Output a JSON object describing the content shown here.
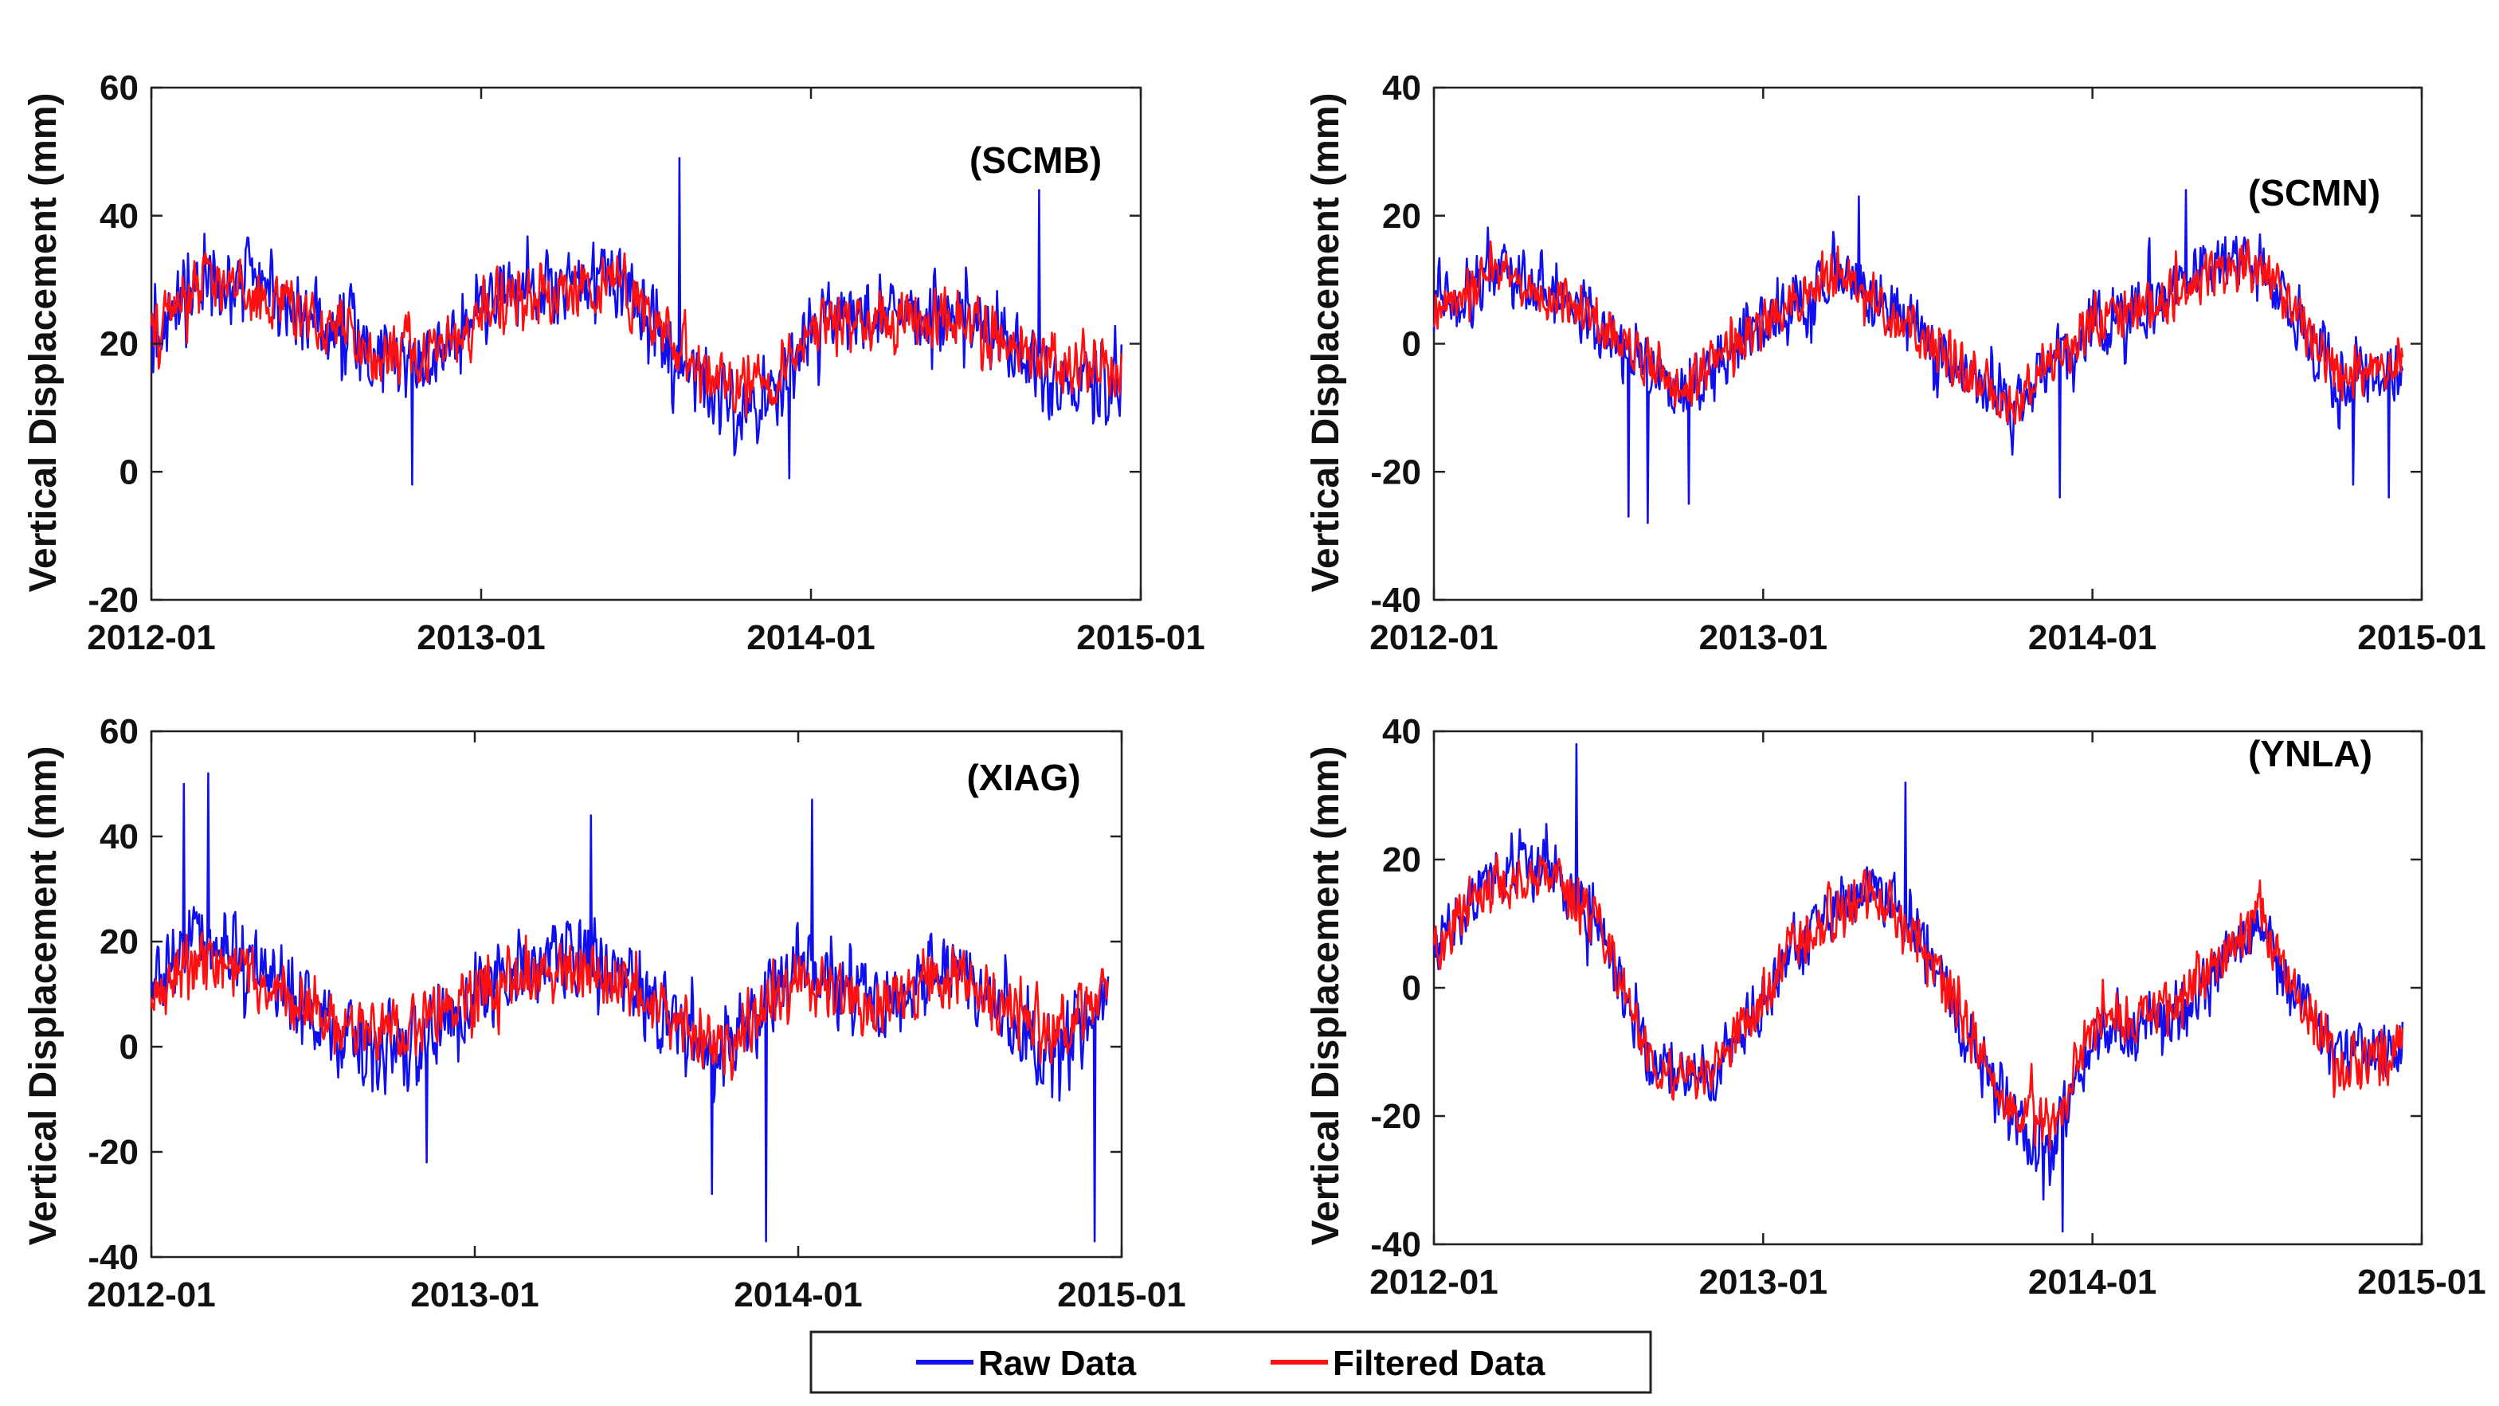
{
  "colors": {
    "raw": "#1010ee",
    "filtered": "#ff1010",
    "axis": "#222222",
    "background": "#ffffff"
  },
  "legend": {
    "entries": [
      {
        "label": "Raw Data",
        "color": "#1010ee"
      },
      {
        "label": "Filtered Data",
        "color": "#ff1010"
      }
    ]
  },
  "chart_data": [
    {
      "type": "line",
      "title": "(SCMB)",
      "xlabel": "",
      "ylabel": "Vertical Displacement (mm)",
      "ylim": [
        -20,
        60
      ],
      "yticks": [
        -20,
        0,
        20,
        40,
        60
      ],
      "xlim": [
        "2012-01",
        "2015-01"
      ],
      "xticks": [
        "2012-01",
        "2013-01",
        "2014-01",
        "2015-01"
      ],
      "x_range_months": [
        0,
        36
      ],
      "data_end_month": 35.3,
      "series": [
        {
          "name": "Raw Data",
          "seasonal_months": [
            0,
            2,
            5,
            8.5,
            10,
            13,
            17,
            20,
            22.5,
            24,
            27,
            30,
            32.5,
            35.3
          ],
          "seasonal_values": [
            22,
            31,
            27,
            17,
            16,
            28,
            30,
            13,
            10,
            22,
            25,
            24,
            15,
            13
          ],
          "noise_amplitude": 7,
          "spikes": [
            {
              "month": 19.2,
              "value": 49
            },
            {
              "month": 32.3,
              "value": 44
            },
            {
              "month": 9.5,
              "value": -2
            },
            {
              "month": 23.2,
              "value": -1
            }
          ]
        },
        {
          "name": "Filtered Data",
          "seasonal_months": [
            0,
            2,
            5,
            8.5,
            10,
            13,
            17,
            20,
            22.5,
            24,
            27,
            30,
            32.5,
            35.3
          ],
          "seasonal_values": [
            22,
            30,
            26,
            18,
            18,
            27,
            29,
            16,
            13,
            22,
            24,
            24,
            17,
            15
          ],
          "noise_amplitude": 5.5
        }
      ]
    },
    {
      "type": "line",
      "title": "(SCMN)",
      "xlabel": "",
      "ylabel": "Vertical Displacement (mm)",
      "ylim": [
        -40,
        40
      ],
      "yticks": [
        -40,
        -20,
        0,
        20,
        40
      ],
      "xlim": [
        "2012-01",
        "2015-01"
      ],
      "xticks": [
        "2012-01",
        "2013-01",
        "2014-01",
        "2015-01"
      ],
      "x_range_months": [
        0,
        36
      ],
      "data_end_month": 35.3,
      "series": [
        {
          "name": "Raw Data",
          "seasonal_months": [
            0,
            2,
            4.5,
            7,
            9,
            12,
            15,
            18,
            21,
            24,
            27,
            30,
            33,
            35.3
          ],
          "seasonal_values": [
            5,
            12,
            8,
            0,
            -8,
            3,
            12,
            0,
            -10,
            3,
            8,
            14,
            -6,
            -4
          ],
          "noise_amplitude": 6,
          "spikes": [
            {
              "month": 7.1,
              "value": -27
            },
            {
              "month": 7.8,
              "value": -28
            },
            {
              "month": 9.3,
              "value": -25
            },
            {
              "month": 15.5,
              "value": 23
            },
            {
              "month": 27.4,
              "value": 24
            },
            {
              "month": 22.8,
              "value": -24
            },
            {
              "month": 33.5,
              "value": -22
            },
            {
              "month": 34.8,
              "value": -24
            }
          ]
        },
        {
          "name": "Filtered Data",
          "seasonal_months": [
            0,
            2,
            4.5,
            7,
            9,
            12,
            15,
            18,
            21,
            24,
            27,
            30,
            33,
            35.3
          ],
          "seasonal_values": [
            5,
            11,
            7,
            0,
            -7,
            3,
            11,
            0,
            -9,
            3,
            8,
            13,
            -5,
            -3
          ],
          "noise_amplitude": 4.5
        }
      ]
    },
    {
      "type": "line",
      "title": "(XIAG)",
      "xlabel": "",
      "ylabel": "Vertical Displacement (mm)",
      "ylim": [
        -40,
        60
      ],
      "yticks": [
        -40,
        -20,
        0,
        20,
        40,
        60
      ],
      "xlim": [
        "2012-01",
        "2015-01"
      ],
      "xticks": [
        "2012-01",
        "2013-01",
        "2014-01",
        "2015-01"
      ],
      "x_range_months": [
        0,
        36
      ],
      "data_end_month": 35.5,
      "series": [
        {
          "name": "Raw Data",
          "seasonal_months": [
            0,
            2,
            4,
            7,
            9,
            12,
            15,
            18,
            21,
            24,
            27,
            30,
            33,
            35.5
          ],
          "seasonal_values": [
            12,
            20,
            15,
            2,
            -2,
            10,
            18,
            10,
            -3,
            15,
            8,
            15,
            -2,
            10
          ],
          "noise_amplitude": 9,
          "spikes": [
            {
              "month": 2.1,
              "value": 52
            },
            {
              "month": 1.2,
              "value": 50
            },
            {
              "month": 16.3,
              "value": 44
            },
            {
              "month": 24.5,
              "value": 47
            },
            {
              "month": 22.8,
              "value": -37
            },
            {
              "month": 35.0,
              "value": -37
            },
            {
              "month": 20.8,
              "value": -28
            },
            {
              "month": 10.2,
              "value": -22
            }
          ]
        },
        {
          "name": "Filtered Data",
          "seasonal_months": [
            0,
            2,
            4,
            7,
            9,
            12,
            15,
            18,
            21,
            24,
            27,
            30,
            33,
            35.5
          ],
          "seasonal_values": [
            10,
            17,
            13,
            3,
            2,
            10,
            16,
            10,
            0,
            12,
            8,
            14,
            2,
            10
          ],
          "noise_amplitude": 7
        }
      ]
    },
    {
      "type": "line",
      "title": "(YNLA)",
      "xlabel": "",
      "ylabel": "Vertical Displacement (mm)",
      "ylim": [
        -40,
        40
      ],
      "yticks": [
        -40,
        -20,
        0,
        20,
        40
      ],
      "xlim": [
        "2012-01",
        "2015-01"
      ],
      "xticks": [
        "2012-01",
        "2013-01",
        "2014-01",
        "2015-01"
      ],
      "x_range_months": [
        0,
        36
      ],
      "data_end_month": 35.3,
      "series": [
        {
          "name": "Raw Data",
          "seasonal_months": [
            0,
            2,
            4,
            6,
            8,
            10,
            13,
            16,
            18,
            21,
            22.5,
            24,
            27,
            30,
            33,
            35.3
          ],
          "seasonal_values": [
            5,
            18,
            20,
            10,
            -12,
            -15,
            5,
            17,
            5,
            -20,
            -26,
            -8,
            -5,
            10,
            -12,
            -10
          ],
          "noise_amplitude": 6,
          "spikes": [
            {
              "month": 5.2,
              "value": 38
            },
            {
              "month": 17.2,
              "value": 32
            },
            {
              "month": 22.9,
              "value": -38
            },
            {
              "month": 22.2,
              "value": -33
            }
          ]
        },
        {
          "name": "Filtered Data",
          "seasonal_months": [
            0,
            2,
            4,
            6,
            8,
            10,
            13,
            16,
            18,
            21,
            22.5,
            24,
            27,
            30,
            33,
            35.3
          ],
          "seasonal_values": [
            5,
            16,
            18,
            10,
            -13,
            -14,
            6,
            16,
            5,
            -18,
            -22,
            -6,
            -3,
            11,
            -12,
            -10
          ],
          "noise_amplitude": 5
        }
      ]
    }
  ]
}
